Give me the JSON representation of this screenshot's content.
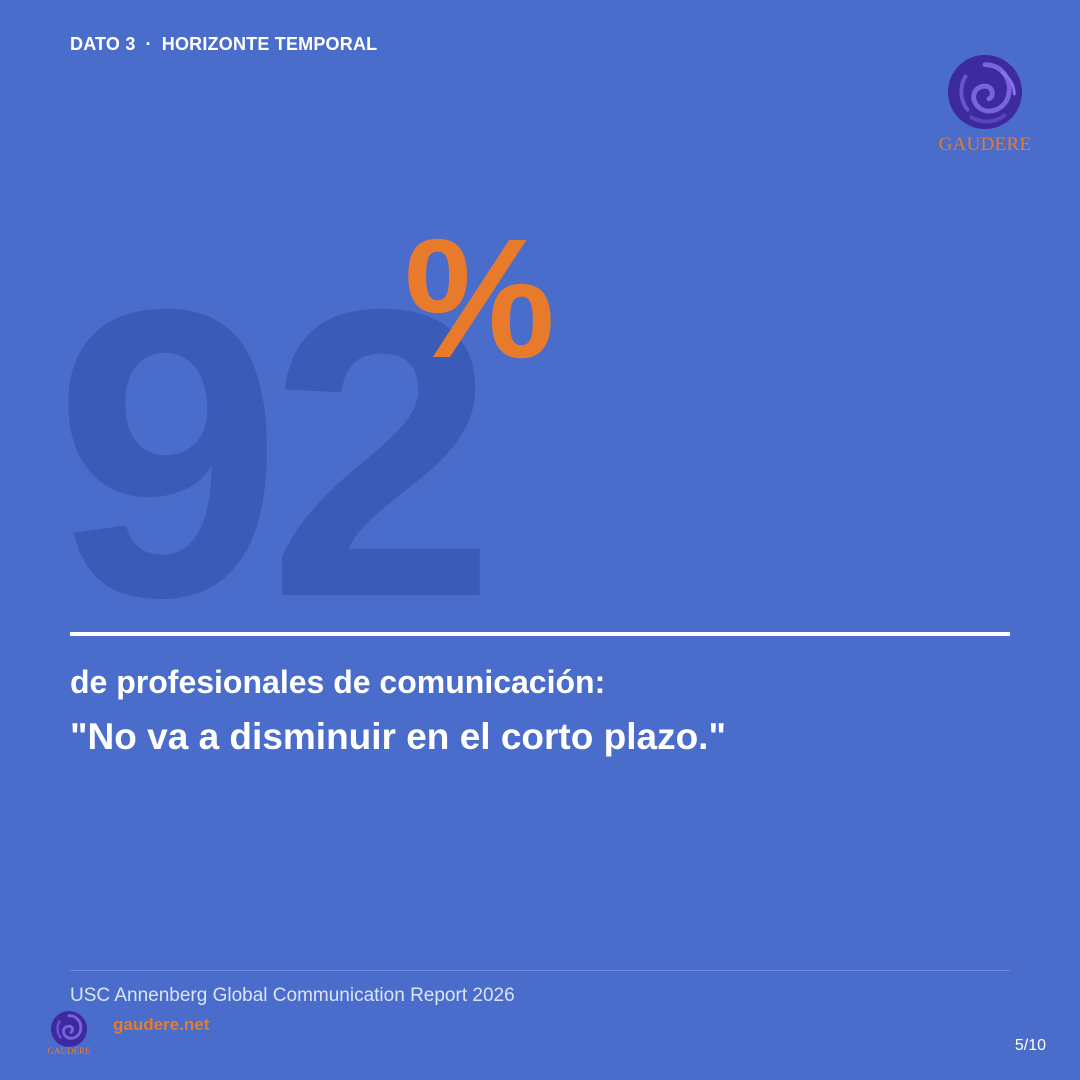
{
  "header": {
    "kicker_label": "DATO 3",
    "kicker_separator": "·",
    "kicker_topic": "HORIZONTE TEMPORAL"
  },
  "logo": {
    "brand": "GAUDERE",
    "icon": "spiral-emblem-icon"
  },
  "stat": {
    "value": "92",
    "unit": "%"
  },
  "caption": {
    "line1": "de profesionales de comunicación:",
    "line2": "\"No va a disminuir en el corto plazo.\""
  },
  "footer": {
    "source": "USC Annenberg Global Communication Report 2026",
    "site": "gaudere.net",
    "page": "5/10"
  },
  "colors": {
    "background": "#4a6dcb",
    "number": "#3a5bb7",
    "accent": "#e87a2b",
    "text": "#ffffff",
    "emblem": "#3d2a9e"
  }
}
